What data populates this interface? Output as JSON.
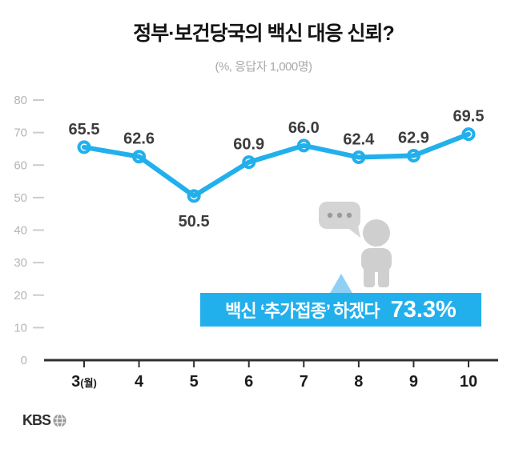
{
  "header": {
    "title": "정부·보건당국의 백신 대응 신뢰?",
    "subtitle": "(%, 응답자 1,000명)"
  },
  "chart_data": {
    "type": "line",
    "title": "정부·보건당국의 백신 대응 신뢰?",
    "subtitle": "(%, 응답자 1,000명)",
    "categories": [
      "3(월)",
      "4",
      "5",
      "6",
      "7",
      "8",
      "9",
      "10"
    ],
    "values": [
      65.5,
      62.6,
      50.5,
      60.9,
      66.0,
      62.4,
      62.9,
      69.5
    ],
    "xlabel": "월",
    "ylabel": "%",
    "ylim": [
      0,
      80
    ],
    "yticks": [
      0,
      10,
      20,
      30,
      40,
      50,
      60,
      70,
      80
    ],
    "grid": false,
    "legend": "none",
    "line_color": "#22b0ec",
    "label_position": [
      "above",
      "above",
      "below",
      "above",
      "above",
      "above",
      "above",
      "above"
    ]
  },
  "annotation": {
    "banner_text": "백신 ‘추가접종’ 하겠다",
    "banner_value": "73.3%",
    "banner_color": "#22b0ec"
  },
  "footer": {
    "logo": "KBS"
  },
  "colors": {
    "accent": "#22b0ec",
    "person_gray": "#cfcfcf"
  }
}
